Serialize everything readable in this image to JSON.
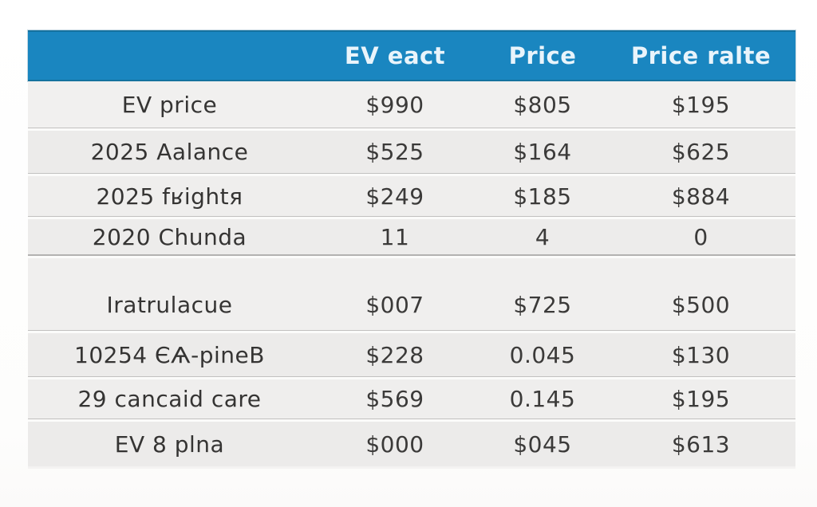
{
  "theme": {
    "accent": "#1a86c0",
    "header_text": "#e9f4fb",
    "row_light": "#f1f0ef",
    "row_dark": "#ecebea",
    "cell_text": "#3b3a39"
  },
  "table": {
    "header": {
      "col0": "",
      "col1": "EV eact",
      "col2": "Price",
      "col3": "Price ralte"
    },
    "rows": [
      {
        "cells": [
          "EV price",
          "$990",
          "$805",
          "$195"
        ]
      },
      {
        "cells": [
          "2025 Aalance",
          "$525",
          "$164",
          "$625"
        ]
      },
      {
        "cells": [
          "2025 fʁightя",
          "$249",
          "$185",
          "$884"
        ]
      },
      {
        "cells": [
          "2020 Chunda",
          "11",
          "4",
          "0"
        ]
      },
      {
        "cells": [
          "Iratrulacue",
          "$007",
          "$725",
          "$500"
        ]
      },
      {
        "cells": [
          "10254 ЄѦ-pineB",
          "$228",
          "0.045",
          "$130"
        ]
      },
      {
        "cells": [
          "29 cancaid care",
          "$569",
          "0.145",
          "$195"
        ]
      },
      {
        "cells": [
          "EV 8 plna",
          "$000",
          "$045",
          "$613"
        ]
      }
    ]
  },
  "chart_data": {
    "type": "table",
    "title": "",
    "columns": [
      "",
      "EV eact",
      "Price",
      "Price ralte"
    ],
    "rows": [
      [
        "EV price",
        "$990",
        "$805",
        "$195"
      ],
      [
        "2025 Aalance",
        "$525",
        "$164",
        "$625"
      ],
      [
        "2025 fʁightя",
        "$249",
        "$185",
        "$884"
      ],
      [
        "2020 Chunda",
        "11",
        "4",
        "0"
      ],
      [
        "Iratrulacue",
        "$007",
        "$725",
        "$500"
      ],
      [
        "10254 ЄѦ-pineB",
        "$228",
        "0.045",
        "$130"
      ],
      [
        "29 cancaid care",
        "$569",
        "0.145",
        "$195"
      ],
      [
        "EV 8 plna",
        "$000",
        "$045",
        "$613"
      ]
    ],
    "layout_hints": {
      "header_bg": "#1a86c0",
      "zebra_rows": true,
      "section_break_after_row": 4
    }
  }
}
